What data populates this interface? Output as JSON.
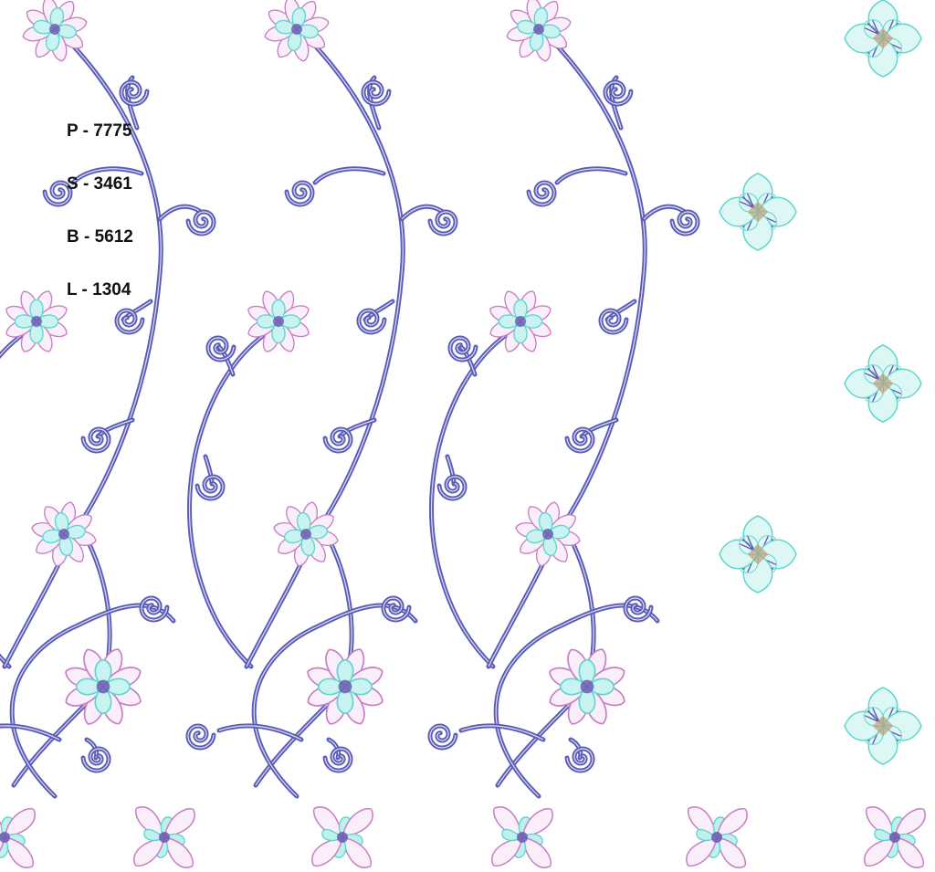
{
  "design_codes": [
    "P - 7775",
    "S - 3461",
    "B - 5612",
    "L - 1304"
  ],
  "colors": {
    "stem": "#5a5cb8",
    "petal_pink": "#c77fc4",
    "petal_teal": "#5fd6cf",
    "center_purple": "#6a4fb0",
    "center_tan": "#b8a07a"
  },
  "motifs": [
    "vine-with-flowers",
    "spiral-tendril",
    "diamond-motif",
    "border-square-motif"
  ]
}
